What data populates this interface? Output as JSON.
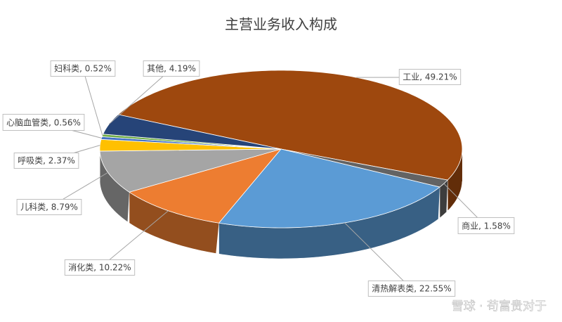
{
  "chart_data": {
    "type": "pie3d",
    "title": "主营业务收入构成",
    "values": [
      49.21,
      1.58,
      22.55,
      10.22,
      8.79,
      2.37,
      0.56,
      0.52,
      4.19
    ],
    "value_labels": [
      "工业, 49.21%",
      "商业, 1.58%",
      "清热解表类, 22.55%",
      "消化类, 10.22%",
      "儿科类, 8.79%",
      "呼吸类, 2.37%",
      "心脑血管类, 0.56%",
      "妇科类, 0.52%",
      "其他, 4.19%"
    ],
    "colors": [
      "#9e480e",
      "#636363",
      "#5b9bd5",
      "#ed7d31",
      "#a5a5a5",
      "#ffc000",
      "#4472c4",
      "#70ad47",
      "#264478"
    ]
  },
  "watermark": "雪球 · 苟富贵对于"
}
